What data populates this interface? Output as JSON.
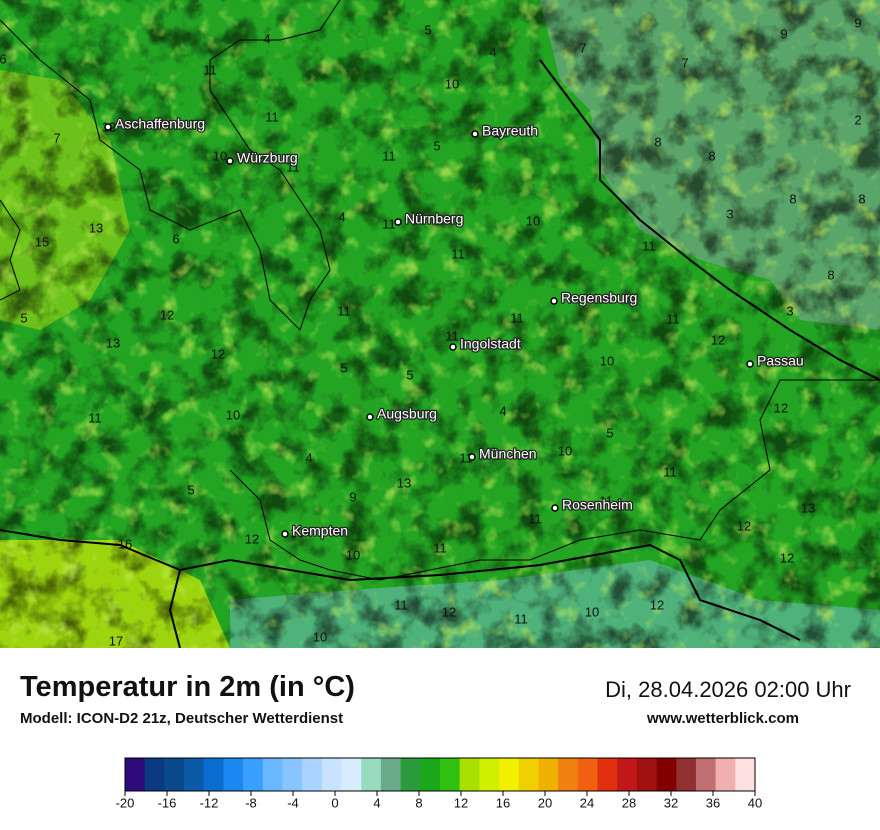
{
  "footer": {
    "title": "Temperatur in 2m (in °C)",
    "model": "Modell: ICON-D2 21z, Deutscher Wetterdienst",
    "datetime": "Di, 28.04.2026 02:00 Uhr",
    "website": "www.wetterblick.com"
  },
  "map": {
    "cities": [
      "Aschaffenburg",
      "Würzburg",
      "Bayreuth",
      "Nürnberg",
      "Regensburg",
      "Ingolstadt",
      "Passau",
      "Augsburg",
      "München",
      "Rosenheim",
      "Kempten"
    ],
    "temperature_labels": [
      6,
      4,
      5,
      4,
      7,
      7,
      9,
      9,
      11,
      10,
      11,
      7,
      2,
      5,
      11,
      10,
      11,
      8,
      8,
      8,
      8,
      4,
      11,
      10,
      3,
      13,
      15,
      6,
      11,
      11,
      8,
      5,
      12,
      11,
      11,
      11,
      3,
      13,
      12,
      11,
      12,
      10,
      5,
      5,
      11,
      10,
      4,
      12,
      5,
      4,
      10,
      11,
      11,
      5,
      13,
      9,
      11,
      11,
      12,
      13,
      16,
      12,
      10,
      10,
      11,
      12,
      11,
      12,
      10,
      12,
      11,
      10,
      17,
      12,
      12
    ]
  },
  "legend": {
    "colors": [
      "#2c0a7a",
      "#0a3a80",
      "#0a4a8a",
      "#0a5aa8",
      "#0a6ed0",
      "#1a88f0",
      "#3aa0ff",
      "#6ab8ff",
      "#8ac4ff",
      "#aad4ff",
      "#c8e2ff",
      "#d8ecff",
      "#98dcc0",
      "#6aaa88",
      "#2a9a3a",
      "#1aa81a",
      "#30c010",
      "#a8e000",
      "#d0f000",
      "#f0f000",
      "#f0d000",
      "#f0b000",
      "#f08010",
      "#f06010",
      "#e03010",
      "#c01818",
      "#a01010",
      "#800000",
      "#903030",
      "#c07070",
      "#f0b0b0",
      "#ffe0e0"
    ],
    "ticks": [
      -20,
      -16,
      -12,
      -8,
      -4,
      0,
      4,
      8,
      12,
      16,
      20,
      24,
      28,
      32,
      36,
      40
    ]
  }
}
